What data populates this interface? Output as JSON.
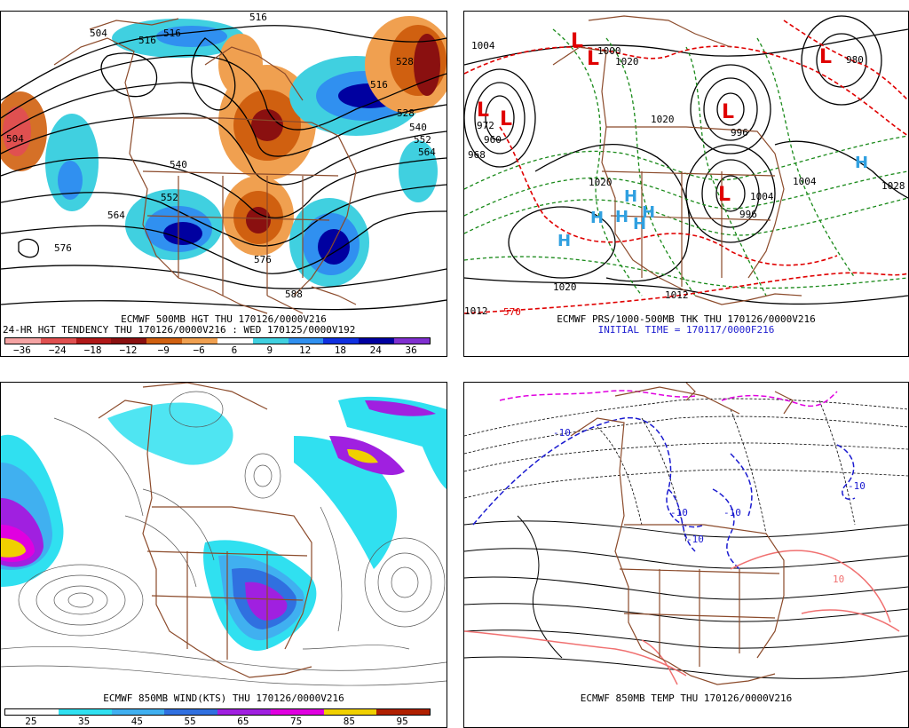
{
  "panels": {
    "p1": {
      "caption1": "ECMWF 500MB HGT THU 170126/0000V216",
      "caption2": "24-HR HGT TENDENCY THU 170126/0000V216 : WED 170125/0000V192",
      "contour_labels": [
        "504",
        "516",
        "516",
        "504",
        "516",
        "528",
        "540",
        "552",
        "564",
        "576",
        "588",
        "540",
        "552",
        "564",
        "576",
        "528",
        "516"
      ],
      "colorbar": {
        "ticks": [
          "−36",
          "−24",
          "−18",
          "−12",
          "−9",
          "−6",
          "6",
          "9",
          "12",
          "18",
          "24",
          "36"
        ],
        "colors": [
          "#f4a3a3",
          "#e05050",
          "#b01818",
          "#8a1010",
          "#d06010",
          "#f0a050",
          "#ffffff",
          "#40d0e0",
          "#3090f0",
          "#1030e0",
          "#0000a0",
          "#8030d0"
        ]
      }
    },
    "p2": {
      "caption1": "ECMWF PRS/1000-500MB THK THU 170126/0000V216",
      "caption2": "INITIAL TIME = 170117/0000F216",
      "highs": [
        "H",
        "H",
        "H",
        "H",
        "H",
        "H",
        "H"
      ],
      "lows": [
        "L",
        "L",
        "L",
        "L",
        "L",
        "L",
        "L"
      ],
      "isobar_labels": [
        "1004",
        "972",
        "960",
        "968",
        "996",
        "1020",
        "1020",
        "1020",
        "1012",
        "1012",
        "1020",
        "1028",
        "1000",
        "980",
        "996",
        "1004",
        "1004",
        "570"
      ]
    },
    "p3": {
      "caption1": "ECMWF 850MB WIND(KTS) THU 170126/0000V216",
      "colorbar": {
        "ticks": [
          "25",
          "35",
          "45",
          "55",
          "65",
          "75",
          "85",
          "95"
        ],
        "colors": [
          "#ffffff",
          "#30e0f0",
          "#40b0f0",
          "#3070e0",
          "#a020e0",
          "#e000e0",
          "#f0d000",
          "#b02000"
        ]
      }
    },
    "p4": {
      "caption1": "ECMWF 850MB TEMP THU 170126/0000V216",
      "temp_labels": [
        "-10",
        "-10",
        "-10",
        "-10",
        "-10",
        "10"
      ]
    }
  },
  "colors": {
    "coast": "#8b4a2a",
    "black_contour": "#000000",
    "red_thickness": "#e00000",
    "green_thickness": "#1a8a1a",
    "blue_temp": "#1a1ad0",
    "magenta_temp": "#e000e0",
    "pink_temp": "#f07070",
    "high_color": "#30a0e0",
    "low_color": "#e00000"
  }
}
